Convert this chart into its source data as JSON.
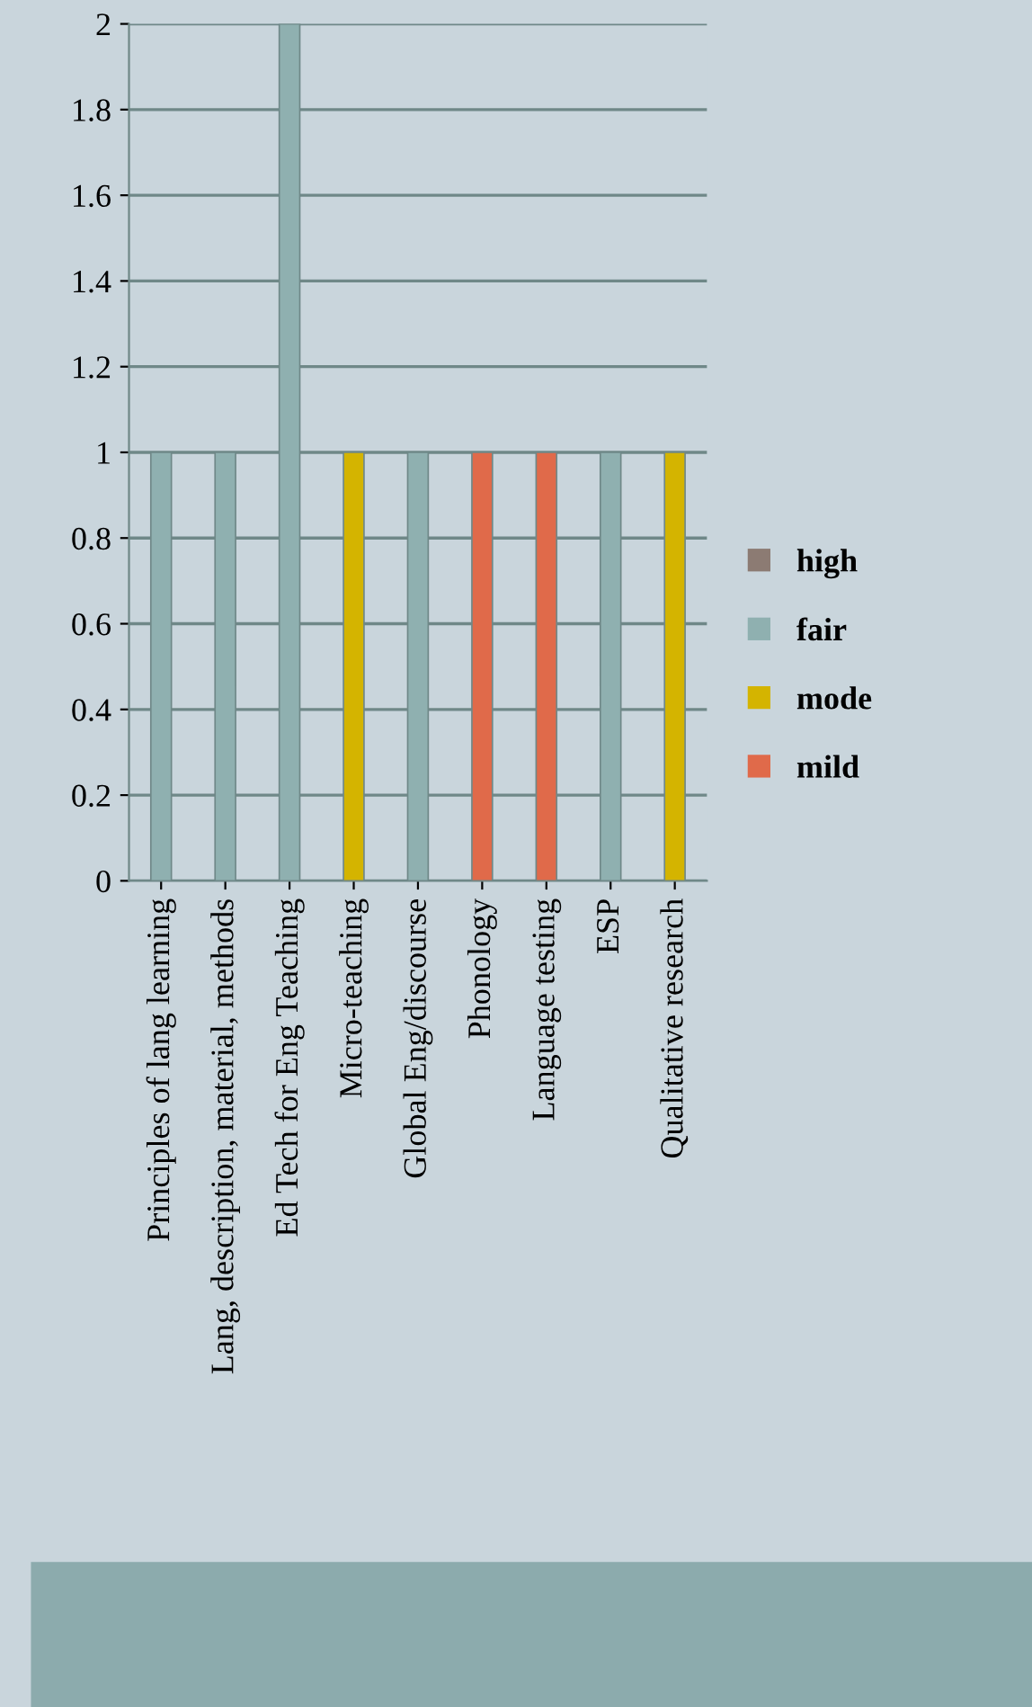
{
  "chart_data": {
    "type": "bar",
    "stacked": true,
    "categories": [
      "Principles of lang learning",
      "Lang, description, material, methods",
      "Ed Tech for Eng Teaching",
      "Micro-teaching",
      "Global Eng/discourse",
      "Phonology",
      "Language testing",
      "ESP",
      "Qualitative research"
    ],
    "series": [
      {
        "name": "high",
        "color": "#8c7b73",
        "values": [
          null,
          null,
          null,
          null,
          null,
          null,
          null,
          null,
          null
        ]
      },
      {
        "name": "fair",
        "color": "#8fb0b0",
        "values": [
          1,
          1,
          2,
          null,
          1,
          null,
          null,
          1,
          null
        ]
      },
      {
        "name": "mode",
        "color": "#d4b400",
        "values": [
          null,
          null,
          null,
          1,
          null,
          null,
          null,
          null,
          1
        ]
      },
      {
        "name": "mild",
        "color": "#e06a4a",
        "values": [
          null,
          null,
          null,
          null,
          null,
          1,
          1,
          null,
          null
        ]
      }
    ],
    "ylim": [
      0,
      2
    ],
    "yticks": [
      0,
      0.2,
      0.4,
      0.6,
      0.8,
      1,
      1.2,
      1.4,
      1.6,
      1.8,
      2
    ],
    "grid": "y",
    "legend": "right"
  }
}
